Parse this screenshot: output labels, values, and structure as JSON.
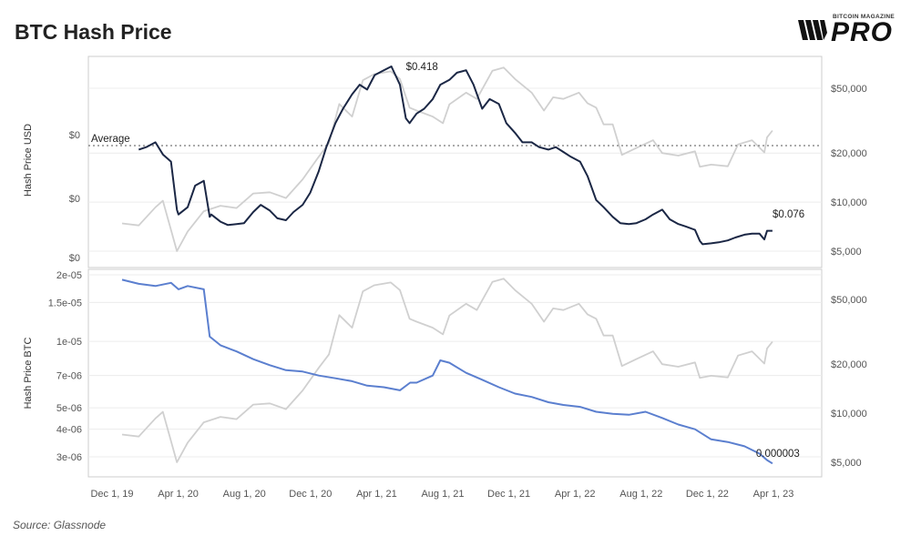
{
  "header": {
    "title": "BTC Hash Price",
    "brand_small": "BITCOIN MAGAZINE",
    "brand_big": "PRO"
  },
  "footer": {
    "source": "Source: Glassnode"
  },
  "colors": {
    "hash_usd": "#1b2745",
    "hash_btc": "#5b7fcf",
    "btc_price": "#d0d0d0",
    "average_line": "#777777",
    "grid": "#ececec",
    "frame": "#cccccc"
  },
  "chart_data": [
    {
      "type": "line",
      "title": "BTC Hash Price",
      "ylabel": "Hash Price USD",
      "x_ticks": [
        "Dec 1, 19",
        "Apr 1, 20",
        "Aug 1, 20",
        "Dec 1, 20",
        "Apr 1, 21",
        "Aug 1, 21",
        "Dec 1, 21",
        "Apr 1, 22",
        "Aug 1, 22",
        "Dec 1, 22",
        "Apr 1, 23"
      ],
      "y_left_ticks": [
        "$0",
        "$0",
        "$0"
      ],
      "y_right_ticks": [
        "$50,000",
        "$20,000",
        "$10,000",
        "$5,000"
      ],
      "y_right_scale": "log",
      "average_label": "Average",
      "annotations": [
        {
          "text": "$0.418",
          "x": "2021-04-15",
          "y": 0.418
        },
        {
          "text": "$0.076",
          "x": "2023-03-15",
          "y": 0.076
        }
      ],
      "grid": true,
      "legend": "none",
      "series": [
        {
          "role": "hash_price_usd",
          "axis": "left",
          "x": [
            "2020-01-01",
            "2020-01-15",
            "2020-02-01",
            "2020-02-15",
            "2020-03-01",
            "2020-03-12",
            "2020-03-15",
            "2020-04-01",
            "2020-04-15",
            "2020-05-01",
            "2020-05-12",
            "2020-05-15",
            "2020-06-01",
            "2020-06-15",
            "2020-07-01",
            "2020-07-15",
            "2020-08-01",
            "2020-08-15",
            "2020-09-01",
            "2020-09-15",
            "2020-10-01",
            "2020-10-15",
            "2020-11-01",
            "2020-11-15",
            "2020-12-01",
            "2020-12-15",
            "2021-01-01",
            "2021-01-15",
            "2021-02-01",
            "2021-02-15",
            "2021-03-01",
            "2021-03-15",
            "2021-04-01",
            "2021-04-15",
            "2021-05-01",
            "2021-05-12",
            "2021-05-19",
            "2021-06-01",
            "2021-06-15",
            "2021-07-01",
            "2021-07-15",
            "2021-08-01",
            "2021-08-15",
            "2021-09-01",
            "2021-09-15",
            "2021-10-01",
            "2021-10-15",
            "2021-11-01",
            "2021-11-15",
            "2021-12-01",
            "2021-12-15",
            "2022-01-01",
            "2022-01-15",
            "2022-02-01",
            "2022-02-15",
            "2022-03-01",
            "2022-03-15",
            "2022-04-01",
            "2022-04-15",
            "2022-05-01",
            "2022-05-15",
            "2022-06-01",
            "2022-06-15",
            "2022-07-01",
            "2022-07-15",
            "2022-08-01",
            "2022-08-15",
            "2022-09-01",
            "2022-09-15",
            "2022-10-01",
            "2022-10-15",
            "2022-11-01",
            "2022-11-10",
            "2022-11-15",
            "2022-12-01",
            "2022-12-15",
            "2023-01-01",
            "2023-01-15",
            "2023-02-01",
            "2023-02-15",
            "2023-03-01",
            "2023-03-10",
            "2023-03-15",
            "2023-03-25"
          ],
          "y": [
            0.245,
            0.25,
            0.26,
            0.235,
            0.22,
            0.12,
            0.11,
            0.125,
            0.17,
            0.18,
            0.105,
            0.11,
            0.095,
            0.088,
            0.09,
            0.092,
            0.115,
            0.13,
            0.118,
            0.102,
            0.098,
            0.115,
            0.13,
            0.155,
            0.2,
            0.25,
            0.3,
            0.33,
            0.36,
            0.38,
            0.37,
            0.4,
            0.41,
            0.418,
            0.38,
            0.31,
            0.3,
            0.32,
            0.33,
            0.35,
            0.38,
            0.39,
            0.405,
            0.41,
            0.38,
            0.33,
            0.35,
            0.34,
            0.3,
            0.28,
            0.26,
            0.26,
            0.25,
            0.245,
            0.25,
            0.24,
            0.23,
            0.22,
            0.19,
            0.14,
            0.125,
            0.105,
            0.092,
            0.09,
            0.092,
            0.1,
            0.11,
            0.12,
            0.1,
            0.09,
            0.085,
            0.078,
            0.055,
            0.048,
            0.05,
            0.052,
            0.056,
            0.062,
            0.068,
            0.07,
            0.07,
            0.058,
            0.076,
            0.076
          ]
        },
        {
          "role": "btc_price",
          "axis": "right",
          "x": [
            "2019-12-01",
            "2020-01-01",
            "2020-02-01",
            "2020-02-15",
            "2020-03-12",
            "2020-04-01",
            "2020-05-01",
            "2020-06-01",
            "2020-07-01",
            "2020-08-01",
            "2020-09-01",
            "2020-10-01",
            "2020-11-01",
            "2020-12-01",
            "2020-12-20",
            "2021-01-08",
            "2021-02-01",
            "2021-02-21",
            "2021-03-14",
            "2021-04-14",
            "2021-05-01",
            "2021-05-19",
            "2021-06-01",
            "2021-07-01",
            "2021-07-20",
            "2021-08-01",
            "2021-09-01",
            "2021-09-21",
            "2021-10-20",
            "2021-11-10",
            "2021-12-01",
            "2022-01-01",
            "2022-01-24",
            "2022-02-10",
            "2022-03-01",
            "2022-03-30",
            "2022-04-15",
            "2022-05-01",
            "2022-05-15",
            "2022-06-01",
            "2022-06-18",
            "2022-07-15",
            "2022-08-15",
            "2022-09-01",
            "2022-10-01",
            "2022-11-01",
            "2022-11-10",
            "2022-12-01",
            "2023-01-01",
            "2023-01-20",
            "2023-02-15",
            "2023-03-10",
            "2023-03-15",
            "2023-03-25"
          ],
          "y": [
            7400,
            7200,
            9300,
            10200,
            5000,
            6600,
            8800,
            9500,
            9200,
            11300,
            11500,
            10600,
            13800,
            19000,
            23000,
            40000,
            33500,
            56000,
            61000,
            63500,
            57000,
            38000,
            36500,
            33500,
            30500,
            39800,
            47000,
            43000,
            64000,
            67000,
            57000,
            47000,
            36500,
            44000,
            43000,
            47000,
            40500,
            38000,
            30000,
            30000,
            19500,
            21500,
            24000,
            20000,
            19300,
            20500,
            16500,
            17000,
            16600,
            22600,
            24000,
            20200,
            25000,
            27500
          ]
        }
      ]
    },
    {
      "type": "line",
      "ylabel": "Hash Price BTC",
      "y_left_scale": "log",
      "y_left_ticks": [
        "2e-05",
        "1.5e-05",
        "1e-05",
        "7e-06",
        "5e-06",
        "4e-06",
        "3e-06"
      ],
      "y_right_ticks": [
        "$50,000",
        "$20,000",
        "$10,000",
        "$5,000"
      ],
      "y_right_scale": "log",
      "annotations": [
        {
          "text": "0.000003",
          "x": "2023-03-25",
          "y": 2.8e-06
        }
      ],
      "grid": true,
      "legend": "none",
      "series": [
        {
          "role": "hash_price_btc",
          "axis": "left",
          "x": [
            "2019-12-01",
            "2020-01-01",
            "2020-02-01",
            "2020-03-01",
            "2020-03-15",
            "2020-04-01",
            "2020-05-01",
            "2020-05-12",
            "2020-06-01",
            "2020-07-01",
            "2020-08-01",
            "2020-09-01",
            "2020-10-01",
            "2020-11-01",
            "2020-12-01",
            "2021-01-01",
            "2021-02-01",
            "2021-03-01",
            "2021-04-01",
            "2021-05-01",
            "2021-05-20",
            "2021-06-01",
            "2021-07-01",
            "2021-07-15",
            "2021-08-01",
            "2021-09-01",
            "2021-10-01",
            "2021-11-01",
            "2021-12-01",
            "2022-01-01",
            "2022-02-01",
            "2022-03-01",
            "2022-04-01",
            "2022-05-01",
            "2022-06-01",
            "2022-07-01",
            "2022-08-01",
            "2022-09-01",
            "2022-10-01",
            "2022-11-01",
            "2022-12-01",
            "2023-01-01",
            "2023-02-01",
            "2023-03-01",
            "2023-03-15",
            "2023-03-25"
          ],
          "y": [
            1.9e-05,
            1.82e-05,
            1.78e-05,
            1.84e-05,
            1.72e-05,
            1.78e-05,
            1.72e-05,
            1.05e-05,
            9.6e-06,
            9e-06,
            8.3e-06,
            7.8e-06,
            7.4e-06,
            7.3e-06,
            7e-06,
            6.8e-06,
            6.6e-06,
            6.3e-06,
            6.2e-06,
            6e-06,
            6.5e-06,
            6.5e-06,
            7e-06,
            8.2e-06,
            8e-06,
            7.2e-06,
            6.7e-06,
            6.2e-06,
            5.8e-06,
            5.6e-06,
            5.3e-06,
            5.15e-06,
            5.05e-06,
            4.8e-06,
            4.7e-06,
            4.65e-06,
            4.8e-06,
            4.5e-06,
            4.2e-06,
            4e-06,
            3.6e-06,
            3.5e-06,
            3.35e-06,
            3.1e-06,
            2.9e-06,
            2.8e-06
          ]
        },
        {
          "role": "btc_price",
          "axis": "right",
          "same_as": "btc_price"
        }
      ]
    }
  ]
}
